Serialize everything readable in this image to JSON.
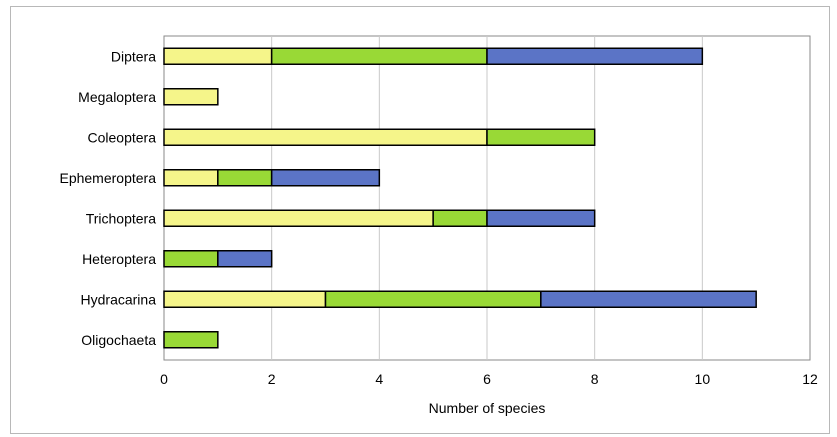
{
  "chart_data": {
    "type": "bar",
    "orientation": "horizontal",
    "stacked": true,
    "title": "",
    "xlabel": "Number of species",
    "ylabel": "",
    "xlim": [
      0,
      12
    ],
    "xticks": [
      0,
      2,
      4,
      6,
      8,
      10,
      12
    ],
    "grid": "vertical",
    "legend": "none",
    "categories": [
      "Diptera",
      "Megaloptera",
      "Coleoptera",
      "Ephemeroptera",
      "Trichoptera",
      "Heteroptera",
      "Hydracarina",
      "Oligochaeta"
    ],
    "series": [
      {
        "color": "#f5f58a",
        "values": [
          2,
          1,
          6,
          1,
          5,
          0,
          3,
          0
        ]
      },
      {
        "color": "#99d936",
        "values": [
          4,
          0,
          2,
          1,
          1,
          1,
          4,
          1
        ]
      },
      {
        "color": "#5b74c6",
        "values": [
          4,
          0,
          0,
          2,
          2,
          1,
          4,
          0
        ]
      }
    ]
  }
}
